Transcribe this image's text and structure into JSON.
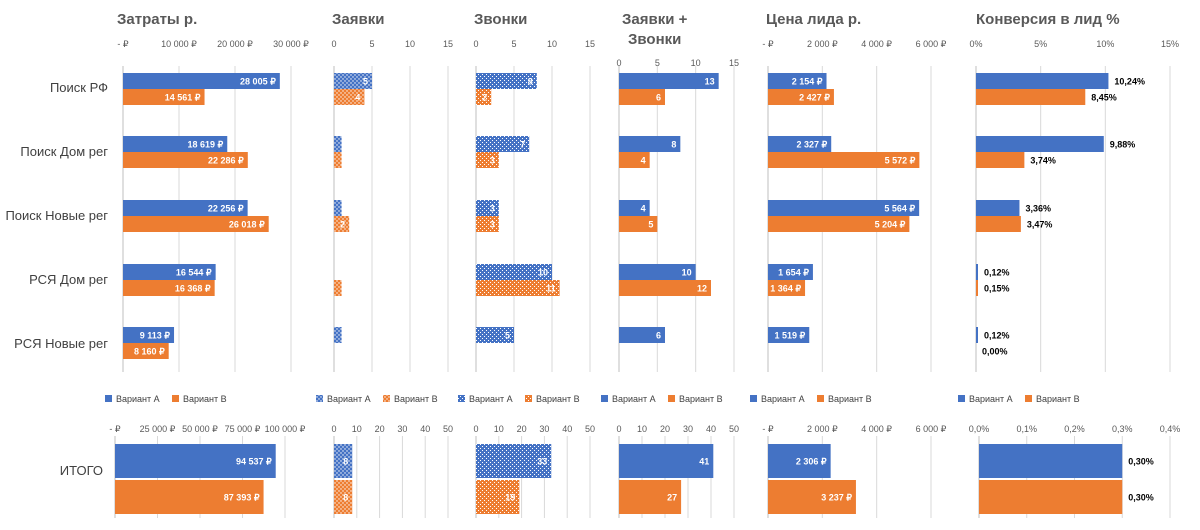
{
  "chart_data": {
    "type": "bar",
    "orientation": "horizontal",
    "categories": [
      "Поиск РФ",
      "Поиск Дом рег",
      "Поиск Новые рег",
      "РСЯ Дом рег",
      "РСЯ Новые рег"
    ],
    "total_label": "ИТОГО",
    "legend": {
      "a": "Вариант А",
      "b": "Вариант В",
      "position": "bottom"
    },
    "colors": {
      "a": "#4472C4",
      "b": "#ED7D31"
    },
    "panels": [
      {
        "key": "cost",
        "title": "Затраты р.",
        "pattern": "solid",
        "ticks": [
          "-   ₽",
          "10 000 ₽",
          "20 000 ₽",
          "30 000 ₽"
        ],
        "xmax": 30000,
        "a": [
          28005,
          18619,
          22256,
          16544,
          9113
        ],
        "b": [
          14561,
          22286,
          26018,
          16368,
          8160
        ],
        "a_labels": [
          "28 005 ₽",
          "18 619 ₽",
          "22 256 ₽",
          "16 544 ₽",
          "9 113 ₽"
        ],
        "b_labels": [
          "14 561 ₽",
          "22 286 ₽",
          "26 018 ₽",
          "16 368 ₽",
          "8 160 ₽"
        ],
        "total_ticks": [
          "-   ₽",
          "25 000 ₽",
          "50 000 ₽",
          "75 000 ₽",
          "100 000 ₽"
        ],
        "total_xmax": 100000,
        "total_a": 94537,
        "total_b": 87393,
        "total_a_label": "94 537 ₽",
        "total_b_label": "87 393 ₽"
      },
      {
        "key": "leads",
        "title": "Заявки",
        "pattern": "dots",
        "ticks": [
          "0",
          "5",
          "10",
          "15"
        ],
        "xmax": 15,
        "a": [
          5,
          1,
          1,
          0,
          1
        ],
        "b": [
          4,
          1,
          2,
          1,
          0
        ],
        "a_labels": [
          "5",
          "",
          "",
          "",
          ""
        ],
        "b_labels": [
          "4",
          "",
          "2",
          "",
          ""
        ],
        "total_ticks": [
          "0",
          "10",
          "20",
          "30",
          "40",
          "50"
        ],
        "total_xmax": 50,
        "total_a": 8,
        "total_b": 8,
        "total_a_label": "8",
        "total_b_label": "8"
      },
      {
        "key": "calls",
        "title": "Звонки",
        "pattern": "checks",
        "ticks": [
          "0",
          "5",
          "10",
          "15"
        ],
        "xmax": 15,
        "a": [
          8,
          7,
          3,
          10,
          5
        ],
        "b": [
          2,
          3,
          3,
          11,
          0
        ],
        "a_labels": [
          "8",
          "7",
          "3",
          "10",
          "5"
        ],
        "b_labels": [
          "2",
          "3",
          "3",
          "11",
          ""
        ],
        "total_ticks": [
          "0",
          "10",
          "20",
          "30",
          "40",
          "50"
        ],
        "total_xmax": 50,
        "total_a": 33,
        "total_b": 19,
        "total_a_label": "33",
        "total_b_label": "19"
      },
      {
        "key": "leads_calls",
        "title": "Заявки +",
        "title2": "Звонки",
        "pattern": "solid",
        "ticks": [
          "0",
          "5",
          "10",
          "15"
        ],
        "xmax": 15,
        "a": [
          13,
          8,
          4,
          10,
          6
        ],
        "b": [
          6,
          4,
          5,
          12,
          0
        ],
        "a_labels": [
          "13",
          "8",
          "4",
          "10",
          "6"
        ],
        "b_labels": [
          "6",
          "4",
          "5",
          "12",
          ""
        ],
        "total_ticks": [
          "0",
          "10",
          "20",
          "30",
          "40",
          "50"
        ],
        "total_xmax": 50,
        "total_a": 41,
        "total_b": 27,
        "total_a_label": "41",
        "total_b_label": "27"
      },
      {
        "key": "cpl",
        "title": "Цена лида р.",
        "pattern": "solid",
        "ticks": [
          "-   ₽",
          "2 000 ₽",
          "4 000 ₽",
          "6 000 ₽"
        ],
        "xmax": 6000,
        "a": [
          2154,
          2327,
          5564,
          1654,
          1519
        ],
        "b": [
          2427,
          5572,
          5204,
          1364,
          0
        ],
        "a_labels": [
          "2 154 ₽",
          "2 327 ₽",
          "5 564 ₽",
          "1 654 ₽",
          "1 519 ₽"
        ],
        "b_labels": [
          "2 427 ₽",
          "5 572 ₽",
          "5 204 ₽",
          "1 364 ₽",
          ""
        ],
        "total_ticks": [
          "-   ₽",
          "2 000 ₽",
          "4 000 ₽",
          "6 000 ₽"
        ],
        "total_xmax": 6000,
        "total_a": 2306,
        "total_b": 3237,
        "total_a_label": "2 306 ₽",
        "total_b_label": "3 237 ₽"
      },
      {
        "key": "conv",
        "title": "Конверсия в лид %",
        "pattern": "solid",
        "labels_outside": true,
        "ticks": [
          "0%",
          "5%",
          "10%",
          "15%"
        ],
        "xmax": 15,
        "a": [
          10.24,
          9.88,
          3.36,
          0.12,
          0.12
        ],
        "b": [
          8.45,
          3.74,
          3.47,
          0.15,
          0.0
        ],
        "a_labels": [
          "10,24%",
          "9,88%",
          "3,36%",
          "0,12%",
          "0,12%"
        ],
        "b_labels": [
          "8,45%",
          "3,74%",
          "3,47%",
          "0,15%",
          "0,00%"
        ],
        "total_ticks": [
          "0,0%",
          "0,1%",
          "0,2%",
          "0,3%",
          "0,4%"
        ],
        "total_xmax": 0.4,
        "total_a": 0.3,
        "total_b": 0.3,
        "total_a_label": "0,30%",
        "total_b_label": "0,30%"
      }
    ]
  }
}
